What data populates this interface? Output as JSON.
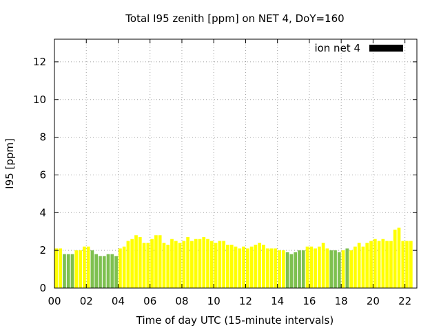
{
  "chart_data": {
    "type": "bar",
    "title": "Total I95 zenith [ppm] on NET 4, DoY=160",
    "xlabel": "Time of day UTC (15-minute intervals)",
    "ylabel": "I95 [ppm]",
    "ylim": [
      0,
      13.2
    ],
    "yticks": [
      0,
      2,
      4,
      6,
      8,
      10,
      12
    ],
    "xlim": [
      0,
      22.75
    ],
    "xticks": [
      0,
      2,
      4,
      6,
      8,
      10,
      12,
      14,
      16,
      18,
      20,
      22
    ],
    "xtick_labels": [
      "00",
      "02",
      "04",
      "06",
      "08",
      "10",
      "12",
      "14",
      "16",
      "18",
      "20",
      "22"
    ],
    "grid": true,
    "legend_position": "top-right",
    "legend": [
      {
        "label": "ion net 4",
        "color": "#000000"
      }
    ],
    "colors": {
      "yellow": "#ffff00",
      "green": "#7ec050",
      "border": "#000000",
      "grid": "#a0a0a0"
    },
    "interval_hours": 0.25,
    "values": [
      2.1,
      2.1,
      1.8,
      1.8,
      1.8,
      2.0,
      2.0,
      2.2,
      2.2,
      2.0,
      1.8,
      1.7,
      1.7,
      1.8,
      1.8,
      1.7,
      2.1,
      2.2,
      2.5,
      2.6,
      2.8,
      2.7,
      2.4,
      2.4,
      2.6,
      2.8,
      2.8,
      2.4,
      2.3,
      2.6,
      2.5,
      2.4,
      2.5,
      2.7,
      2.5,
      2.6,
      2.6,
      2.7,
      2.6,
      2.5,
      2.4,
      2.5,
      2.5,
      2.3,
      2.3,
      2.2,
      2.1,
      2.2,
      2.1,
      2.2,
      2.3,
      2.4,
      2.3,
      2.1,
      2.1,
      2.1,
      2.0,
      2.0,
      1.9,
      1.8,
      1.9,
      2.0,
      2.0,
      2.2,
      2.2,
      2.1,
      2.2,
      2.4,
      2.1,
      2.0,
      2.0,
      1.9,
      2.0,
      2.1,
      2.0,
      2.2,
      2.4,
      2.2,
      2.4,
      2.5,
      2.6,
      2.5,
      2.6,
      2.5,
      2.5,
      3.1,
      3.2,
      2.5,
      2.5,
      2.5
    ],
    "value_colors": [
      "yellow",
      "yellow",
      "green",
      "green",
      "green",
      "yellow",
      "yellow",
      "yellow",
      "yellow",
      "green",
      "green",
      "green",
      "green",
      "green",
      "green",
      "green",
      "yellow",
      "yellow",
      "yellow",
      "yellow",
      "yellow",
      "yellow",
      "yellow",
      "yellow",
      "yellow",
      "yellow",
      "yellow",
      "yellow",
      "yellow",
      "yellow",
      "yellow",
      "yellow",
      "yellow",
      "yellow",
      "yellow",
      "yellow",
      "yellow",
      "yellow",
      "yellow",
      "yellow",
      "yellow",
      "yellow",
      "yellow",
      "yellow",
      "yellow",
      "yellow",
      "yellow",
      "yellow",
      "yellow",
      "yellow",
      "yellow",
      "yellow",
      "yellow",
      "yellow",
      "yellow",
      "yellow",
      "yellow",
      "yellow",
      "green",
      "green",
      "green",
      "green",
      "green",
      "yellow",
      "yellow",
      "yellow",
      "yellow",
      "yellow",
      "yellow",
      "green",
      "green",
      "green",
      "yellow",
      "green",
      "yellow",
      "yellow",
      "yellow",
      "yellow",
      "yellow",
      "yellow",
      "yellow",
      "yellow",
      "yellow",
      "yellow",
      "yellow",
      "yellow",
      "yellow",
      "yellow",
      "yellow",
      "yellow"
    ]
  }
}
